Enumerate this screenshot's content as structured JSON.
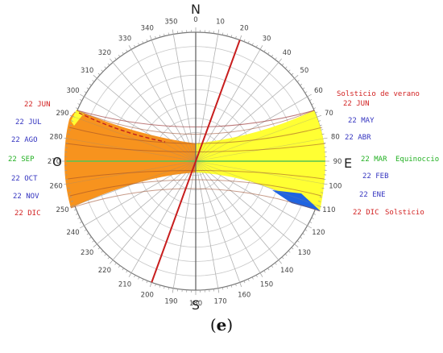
{
  "compass": {
    "north": "N",
    "south": "S",
    "east": "E",
    "west": "O"
  },
  "azimuth_labels": [
    "0",
    "10",
    "20",
    "30",
    "40",
    "50",
    "60",
    "70",
    "80",
    "90",
    "100",
    "110",
    "120",
    "130",
    "140",
    "150",
    "160",
    "170",
    "180",
    "190",
    "200",
    "210",
    "220",
    "230",
    "240",
    "250",
    "260",
    "270",
    "280",
    "290",
    "300",
    "310",
    "320",
    "330",
    "340",
    "350"
  ],
  "right_labels": [
    {
      "text": "Solsticio de verano",
      "color": "#d22222"
    },
    {
      "text": "22 JUN",
      "color": "#d22222"
    },
    {
      "text": "22 MAY",
      "color": "#3535c0"
    },
    {
      "text": "22 ABR",
      "color": "#3535c0"
    },
    {
      "text": "22 MAR",
      "color": "#22b022"
    },
    {
      "text": "Equinoccio",
      "color": "#22b022"
    },
    {
      "text": "22 FEB",
      "color": "#3535c0"
    },
    {
      "text": "22 ENE",
      "color": "#3535c0"
    },
    {
      "text": "22 DIC",
      "color": "#d22222"
    },
    {
      "text": "Solsticio",
      "color": "#d22222"
    }
  ],
  "left_labels": [
    {
      "text": "22 JUN",
      "color": "#d22222"
    },
    {
      "text": "22 JUL",
      "color": "#3535c0"
    },
    {
      "text": "22 AGO",
      "color": "#3535c0"
    },
    {
      "text": "22 SEP",
      "color": "#22b022"
    },
    {
      "text": "22 OCT",
      "color": "#3535c0"
    },
    {
      "text": "22 NOV",
      "color": "#3535c0"
    },
    {
      "text": "22 DIC",
      "color": "#d22222"
    }
  ],
  "caption": {
    "label": "e"
  },
  "colors": {
    "orange_region": "#f7931e",
    "yellow_region": "#ffff33",
    "blue_region": "#1f64e0",
    "axis_line": "#c81e1e",
    "sun_path": "#9a4a2a",
    "ring": "#aaaaaa"
  }
}
